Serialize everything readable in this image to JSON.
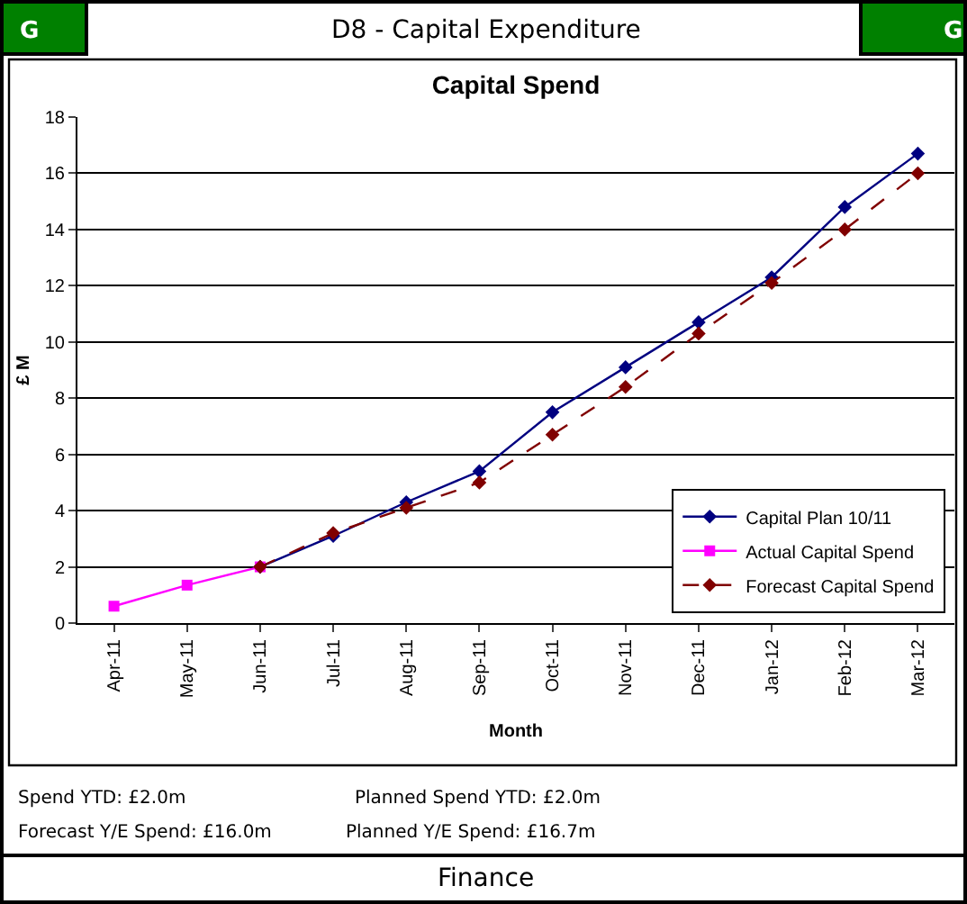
{
  "chart_data": {
    "type": "line",
    "title": "Capital Spend",
    "xlabel": "Month",
    "ylabel": "£ M",
    "categories": [
      "Apr-11",
      "May-11",
      "Jun-11",
      "Jul-11",
      "Aug-11",
      "Sep-11",
      "Oct-11",
      "Nov-11",
      "Dec-11",
      "Jan-12",
      "Feb-12",
      "Mar-12"
    ],
    "series": [
      {
        "name": "Capital Plan 10/11",
        "color": "#000080",
        "marker": "diamond",
        "line_style": "solid",
        "values": [
          null,
          null,
          2.0,
          3.1,
          4.3,
          5.4,
          7.5,
          9.1,
          10.7,
          12.3,
          14.8,
          16.7
        ]
      },
      {
        "name": "Actual Capital Spend",
        "color": "#ff00ff",
        "marker": "square",
        "line_style": "solid",
        "values": [
          0.6,
          1.35,
          2.0,
          null,
          null,
          null,
          null,
          null,
          null,
          null,
          null,
          null
        ]
      },
      {
        "name": "Forecast Capital Spend",
        "color": "#800000",
        "marker": "diamond",
        "line_style": "dashed",
        "values": [
          null,
          null,
          2.0,
          3.2,
          4.1,
          5.0,
          6.7,
          8.4,
          10.3,
          12.1,
          14.0,
          16.0
        ]
      }
    ],
    "ylim": [
      0,
      18
    ],
    "yticks": [
      0,
      2,
      4,
      6,
      8,
      10,
      12,
      14,
      16,
      18
    ],
    "grid": "y",
    "legend": "bottom right",
    "annotations": [
      "G",
      "D8 - Capital Expenditure",
      "G",
      "Spend YTD: £2.0m",
      "Planned Spend YTD: £2.0m",
      "Forecast Y/E Spend: £16.0m",
      "Planned Y/E Spend: £16.7m",
      "Finance"
    ]
  }
}
